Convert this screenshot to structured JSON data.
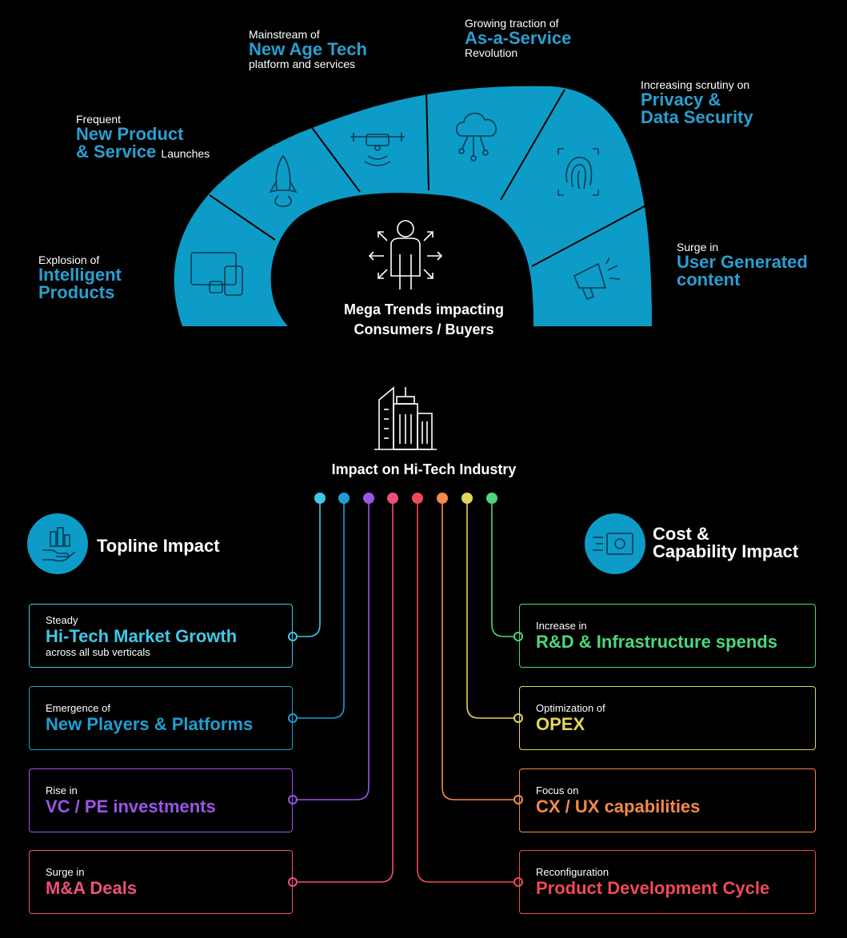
{
  "trends": {
    "intelligent": {
      "pre": "Explosion of",
      "title1": "Intelligent",
      "title2": "Products"
    },
    "newproduct": {
      "pre": "Frequent",
      "title1": "New Product",
      "title2": "& Service",
      "post": "Launches"
    },
    "newage": {
      "pre": "Mainstream of",
      "title": "New Age Tech",
      "post": "platform and services"
    },
    "aas": {
      "pre": "Growing traction of",
      "title": "As-a-Service",
      "post": "Revolution"
    },
    "privacy": {
      "pre": "Increasing scrutiny on",
      "title1": "Privacy &",
      "title2": "Data Security"
    },
    "ugc": {
      "pre": "Surge in",
      "title1": "User Generated",
      "title2": "content"
    }
  },
  "center": {
    "line1": "Mega Trends impacting",
    "line2": "Consumers / Buyers"
  },
  "industry": {
    "title": "Impact on Hi-Tech Industry"
  },
  "topline": {
    "title": "Topline Impact"
  },
  "cost": {
    "line1": "Cost &",
    "line2": "Capability Impact"
  },
  "colors": {
    "arc": "#0d9cc7",
    "cyan": "#3ec9e8",
    "teal": "#1f9fcf",
    "purple": "#9b55e8",
    "pink": "#ee4f7a",
    "red": "#f04a55",
    "orange": "#f5894a",
    "yellow": "#e2d65b",
    "green": "#4cd87a"
  },
  "left_boxes": [
    {
      "pre": "Steady",
      "title": "Hi-Tech Market Growth",
      "sub": "across all sub verticals",
      "color": "#3ec9e8"
    },
    {
      "pre": "Emergence of",
      "title": "New Players & Platforms",
      "sub": "",
      "color": "#1f9fcf"
    },
    {
      "pre": "Rise in",
      "title": "VC / PE investments",
      "sub": "",
      "color": "#9b55e8"
    },
    {
      "pre": "Surge in",
      "title": "M&A Deals",
      "sub": "",
      "color": "#ee4f7a"
    }
  ],
  "right_boxes": [
    {
      "pre": "Increase in",
      "title": "R&D & Infrastructure spends",
      "color": "#4cd87a"
    },
    {
      "pre": "Optimization of",
      "title": "OPEX",
      "color": "#e2d65b"
    },
    {
      "pre": "Focus on",
      "title": "CX / UX capabilities",
      "color": "#f5894a"
    },
    {
      "pre": "Reconfiguration",
      "title": "Product Development Cycle",
      "color": "#f04a55"
    }
  ]
}
